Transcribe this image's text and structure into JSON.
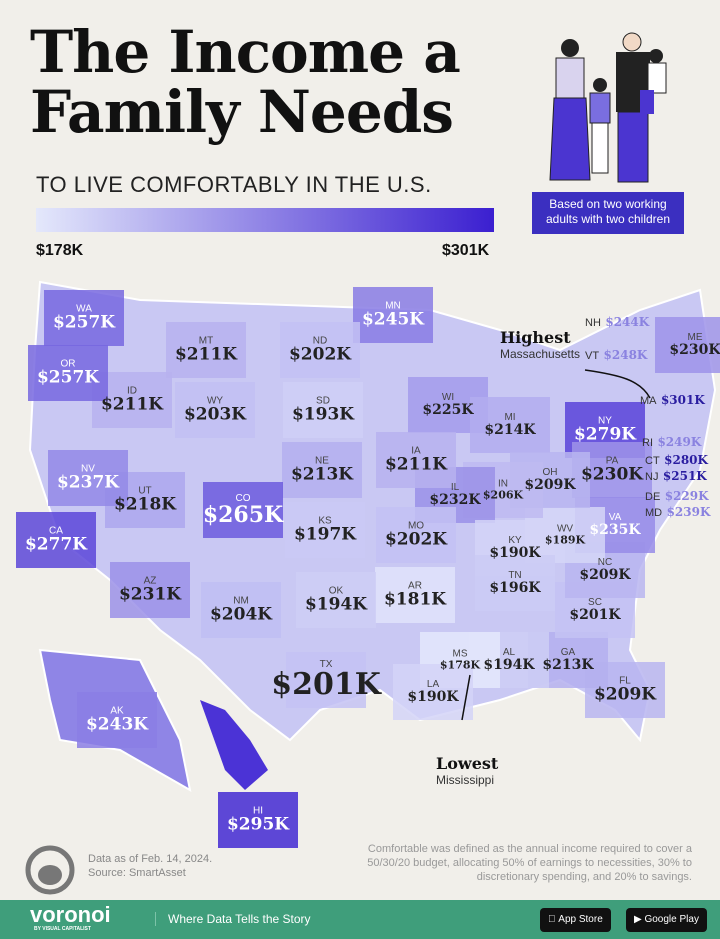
{
  "header": {
    "title_line1": "The Income a",
    "title_line2": "Family Needs",
    "subtitle": "TO LIVE COMFORTABLY IN THE U.S.",
    "basis": "Based on two working adults with two children"
  },
  "legend": {
    "min": "$178K",
    "max": "$301K",
    "min_color": "#e4e8fb",
    "max_color": "#3b1fd0"
  },
  "states": [
    {
      "abbr": "WA",
      "value": "$257K",
      "n": 257
    },
    {
      "abbr": "OR",
      "value": "$257K",
      "n": 257
    },
    {
      "abbr": "CA",
      "value": "$277K",
      "n": 277
    },
    {
      "abbr": "NV",
      "value": "$237K",
      "n": 237
    },
    {
      "abbr": "ID",
      "value": "$211K",
      "n": 211
    },
    {
      "abbr": "MT",
      "value": "$211K",
      "n": 211
    },
    {
      "abbr": "WY",
      "value": "$203K",
      "n": 203
    },
    {
      "abbr": "UT",
      "value": "$218K",
      "n": 218
    },
    {
      "abbr": "CO",
      "value": "$265K",
      "n": 265
    },
    {
      "abbr": "AZ",
      "value": "$231K",
      "n": 231
    },
    {
      "abbr": "NM",
      "value": "$204K",
      "n": 204
    },
    {
      "abbr": "ND",
      "value": "$202K",
      "n": 202
    },
    {
      "abbr": "SD",
      "value": "$193K",
      "n": 193
    },
    {
      "abbr": "NE",
      "value": "$213K",
      "n": 213
    },
    {
      "abbr": "KS",
      "value": "$197K",
      "n": 197
    },
    {
      "abbr": "OK",
      "value": "$194K",
      "n": 194
    },
    {
      "abbr": "TX",
      "value": "$201K",
      "n": 201
    },
    {
      "abbr": "MN",
      "value": "$245K",
      "n": 245
    },
    {
      "abbr": "IA",
      "value": "$211K",
      "n": 211
    },
    {
      "abbr": "MO",
      "value": "$202K",
      "n": 202
    },
    {
      "abbr": "AR",
      "value": "$181K",
      "n": 181
    },
    {
      "abbr": "LA",
      "value": "$190K",
      "n": 190
    },
    {
      "abbr": "MS",
      "value": "$178K",
      "n": 178
    },
    {
      "abbr": "AL",
      "value": "$194K",
      "n": 194
    },
    {
      "abbr": "TN",
      "value": "$196K",
      "n": 196
    },
    {
      "abbr": "KY",
      "value": "$190K",
      "n": 190
    },
    {
      "abbr": "IL",
      "value": "$232K",
      "n": 232
    },
    {
      "abbr": "IN",
      "value": "$206K",
      "n": 206
    },
    {
      "abbr": "OH",
      "value": "$209K",
      "n": 209
    },
    {
      "abbr": "MI",
      "value": "$214K",
      "n": 214
    },
    {
      "abbr": "WI",
      "value": "$225K",
      "n": 225
    },
    {
      "abbr": "WV",
      "value": "$189K",
      "n": 189
    },
    {
      "abbr": "VA",
      "value": "$235K",
      "n": 235
    },
    {
      "abbr": "NC",
      "value": "$209K",
      "n": 209
    },
    {
      "abbr": "SC",
      "value": "$201K",
      "n": 201
    },
    {
      "abbr": "GA",
      "value": "$213K",
      "n": 213
    },
    {
      "abbr": "FL",
      "value": "$209K",
      "n": 209
    },
    {
      "abbr": "PA",
      "value": "$230K",
      "n": 230
    },
    {
      "abbr": "NY",
      "value": "$279K",
      "n": 279
    },
    {
      "abbr": "ME",
      "value": "$230K",
      "n": 230
    },
    {
      "abbr": "AK",
      "value": "$243K",
      "n": 243
    },
    {
      "abbr": "HI",
      "value": "$295K",
      "n": 295
    }
  ],
  "northeast": [
    {
      "abbr": "NH",
      "value": "$244K"
    },
    {
      "abbr": "VT",
      "value": "$248K"
    },
    {
      "abbr": "MA",
      "value": "$301K"
    },
    {
      "abbr": "RI",
      "value": "$249K"
    },
    {
      "abbr": "CT",
      "value": "$280K"
    },
    {
      "abbr": "NJ",
      "value": "$251K"
    },
    {
      "abbr": "DE",
      "value": "$229K"
    },
    {
      "abbr": "MD",
      "value": "$239K"
    }
  ],
  "callouts": {
    "highest": "Highest",
    "highest_state": "Massachusetts",
    "lowest": "Lowest",
    "lowest_state": "Mississippi"
  },
  "notes": {
    "date": "Data as of Feb. 14, 2024.",
    "source": "Source: SmartAsset",
    "definition": "Comfortable was defined as the annual income required to cover a 50/30/20 budget, allocating 50% of earnings to necessities, 30% to discretionary spending, and 20% to savings."
  },
  "footer": {
    "brand": "voronoi",
    "brand_sub": "BY VISUAL CAPITALIST",
    "tagline": "Where Data Tells the Story",
    "app_store": "App Store",
    "google_play": "Google Play"
  }
}
